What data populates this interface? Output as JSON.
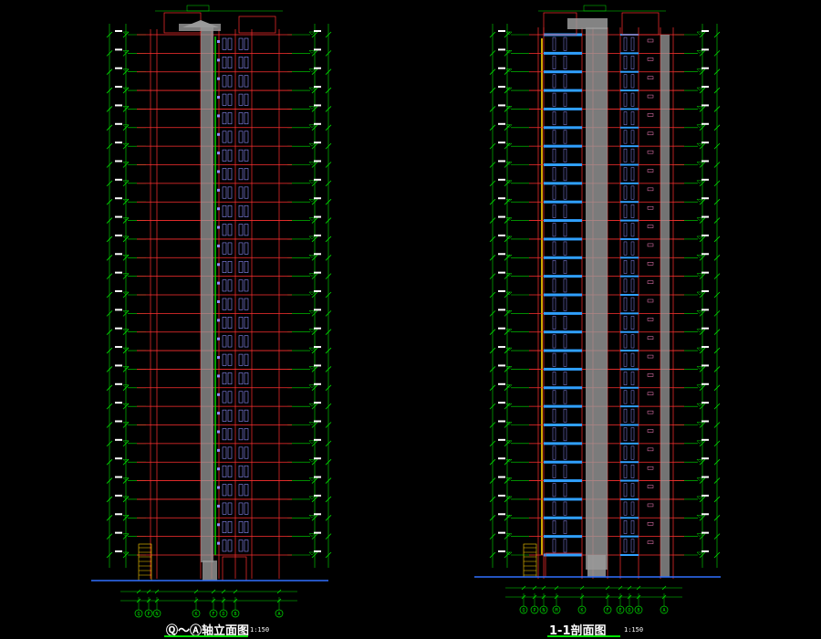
{
  "drawings": [
    {
      "id": "elevation",
      "title": "Ⓠ～Ⓐ轴立面图",
      "scale": "1:150",
      "axis_labels": [
        "Q",
        "P",
        "N",
        "K",
        "F",
        "D",
        "B",
        "A"
      ],
      "floors": 28
    },
    {
      "id": "section",
      "title": "1-1剖面图",
      "scale": "1:150",
      "axis_labels": [
        "Q",
        "P",
        "N",
        "M",
        "K",
        "F",
        "E",
        "D",
        "B",
        "A"
      ],
      "floors": 28
    }
  ],
  "colors": {
    "background": "#000000",
    "dimension": "#00e000",
    "floor_line": "#ff3030",
    "window": "#9090ff",
    "wall_fill": "#9a9a9a",
    "ground": "#3070ff",
    "slab": "#30a0ff",
    "railing": "#ffd000",
    "text": "#ffffff",
    "core_outline": "#ff80c0"
  }
}
